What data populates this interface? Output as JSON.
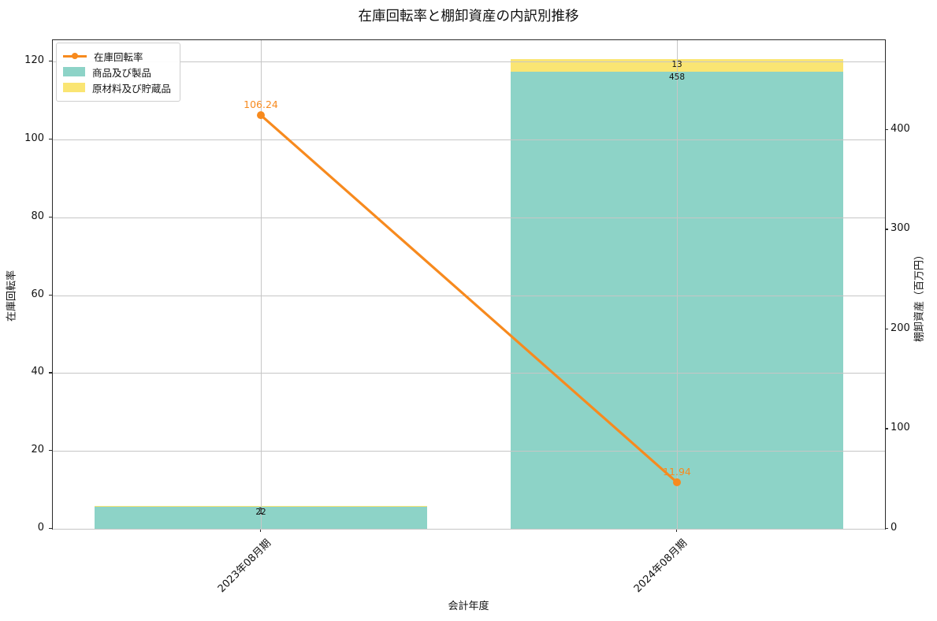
{
  "title": "在庫回転率と棚卸資産の内訳別推移",
  "chart_data": {
    "type": "combo (stacked bar + line, dual y-axis)",
    "title": "在庫回転率と棚卸資産の内訳別推移",
    "categories": [
      "2023年08月期",
      "2024年08月期"
    ],
    "xlabel": "会計年度",
    "ylabel_left": "在庫回転率",
    "ylabel_right": "棚卸資産（百万円）",
    "left_axis": {
      "ticks": [
        0,
        20,
        40,
        60,
        80,
        100,
        120
      ],
      "max": 125.5
    },
    "right_axis": {
      "ticks": [
        0,
        100,
        200,
        300,
        400
      ],
      "max": 490
    },
    "grid": true,
    "legend_position": "upper left",
    "bar_series": [
      {
        "name": "商品及び製品",
        "axis": "right",
        "color": "#8dd3c7",
        "values": [
          22,
          458
        ],
        "value_labels": [
          "22",
          "458"
        ]
      },
      {
        "name": "原材料及び貯蔵品",
        "axis": "right",
        "color": "#fae573",
        "values": [
          1,
          13
        ],
        "value_labels": [
          "1",
          "13"
        ]
      }
    ],
    "line_series": {
      "name": "在庫回転率",
      "axis": "left",
      "color": "#f78a1e",
      "values": [
        106.24,
        11.94
      ],
      "value_labels": [
        "106.24",
        "11.94"
      ]
    },
    "colors": {
      "grid": "#c6c6c6",
      "spine": "#2a2a2a",
      "text": "#111111"
    }
  },
  "legend": {
    "items": [
      {
        "label": "在庫回転率",
        "swatch": "line-marker",
        "color": "#f78a1e"
      },
      {
        "label": "商品及び製品",
        "swatch": "rect",
        "color": "#8dd3c7"
      },
      {
        "label": "原材料及び貯蔵品",
        "swatch": "rect",
        "color": "#fae573"
      }
    ]
  }
}
